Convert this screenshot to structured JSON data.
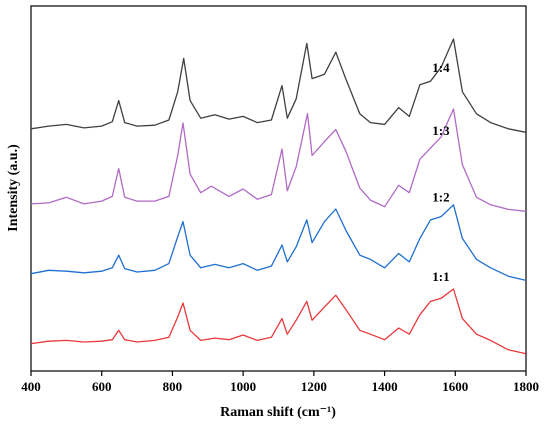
{
  "chart_data": {
    "type": "line",
    "xlabel": "Raman shift (cm⁻¹)",
    "ylabel": "Intensity (a.u.)",
    "xlim": [
      400,
      1800
    ],
    "xticks": [
      400,
      600,
      800,
      1000,
      1200,
      1400,
      1600,
      1800
    ],
    "y_ticks_shown": false,
    "grid": false,
    "legend": "none",
    "series": [
      {
        "label": "1:4",
        "color": "#404040",
        "points": [
          [
            400,
            -2
          ],
          [
            450,
            1
          ],
          [
            500,
            3
          ],
          [
            550,
            -1
          ],
          [
            600,
            1
          ],
          [
            630,
            6
          ],
          [
            648,
            30
          ],
          [
            665,
            5
          ],
          [
            700,
            1
          ],
          [
            750,
            2
          ],
          [
            790,
            8
          ],
          [
            815,
            40
          ],
          [
            832,
            78
          ],
          [
            850,
            30
          ],
          [
            880,
            10
          ],
          [
            920,
            14
          ],
          [
            960,
            9
          ],
          [
            1000,
            12
          ],
          [
            1040,
            5
          ],
          [
            1080,
            8
          ],
          [
            1110,
            47
          ],
          [
            1125,
            10
          ],
          [
            1150,
            32
          ],
          [
            1180,
            95
          ],
          [
            1195,
            55
          ],
          [
            1230,
            60
          ],
          [
            1262,
            85
          ],
          [
            1290,
            55
          ],
          [
            1330,
            15
          ],
          [
            1360,
            5
          ],
          [
            1400,
            3
          ],
          [
            1440,
            22
          ],
          [
            1470,
            12
          ],
          [
            1500,
            48
          ],
          [
            1530,
            52
          ],
          [
            1560,
            68
          ],
          [
            1595,
            100
          ],
          [
            1620,
            40
          ],
          [
            1660,
            15
          ],
          [
            1700,
            5
          ],
          [
            1750,
            -2
          ],
          [
            1800,
            -6
          ]
        ]
      },
      {
        "label": "1:3",
        "color": "#b06ac6",
        "points": [
          [
            400,
            -2
          ],
          [
            450,
            -1
          ],
          [
            500,
            5
          ],
          [
            550,
            -2
          ],
          [
            600,
            1
          ],
          [
            630,
            6
          ],
          [
            648,
            36
          ],
          [
            665,
            5
          ],
          [
            700,
            1
          ],
          [
            750,
            1
          ],
          [
            790,
            6
          ],
          [
            815,
            50
          ],
          [
            830,
            85
          ],
          [
            850,
            30
          ],
          [
            880,
            10
          ],
          [
            910,
            17
          ],
          [
            960,
            6
          ],
          [
            1000,
            14
          ],
          [
            1040,
            3
          ],
          [
            1080,
            8
          ],
          [
            1110,
            57
          ],
          [
            1125,
            12
          ],
          [
            1150,
            38
          ],
          [
            1182,
            95
          ],
          [
            1195,
            50
          ],
          [
            1230,
            65
          ],
          [
            1262,
            78
          ],
          [
            1290,
            55
          ],
          [
            1330,
            15
          ],
          [
            1360,
            2
          ],
          [
            1400,
            -5
          ],
          [
            1440,
            18
          ],
          [
            1470,
            10
          ],
          [
            1500,
            46
          ],
          [
            1530,
            58
          ],
          [
            1560,
            70
          ],
          [
            1595,
            100
          ],
          [
            1620,
            40
          ],
          [
            1660,
            5
          ],
          [
            1700,
            -3
          ],
          [
            1750,
            -8
          ],
          [
            1800,
            -10
          ]
        ]
      },
      {
        "label": "1:2",
        "color": "#1f6fd0",
        "points": [
          [
            400,
            -2
          ],
          [
            450,
            2
          ],
          [
            500,
            1
          ],
          [
            550,
            -1
          ],
          [
            600,
            1
          ],
          [
            630,
            5
          ],
          [
            648,
            20
          ],
          [
            665,
            4
          ],
          [
            700,
            0
          ],
          [
            750,
            2
          ],
          [
            790,
            10
          ],
          [
            815,
            42
          ],
          [
            830,
            60
          ],
          [
            850,
            20
          ],
          [
            880,
            5
          ],
          [
            920,
            9
          ],
          [
            960,
            5
          ],
          [
            1000,
            10
          ],
          [
            1040,
            2
          ],
          [
            1080,
            7
          ],
          [
            1110,
            32
          ],
          [
            1125,
            12
          ],
          [
            1150,
            30
          ],
          [
            1180,
            62
          ],
          [
            1195,
            35
          ],
          [
            1230,
            60
          ],
          [
            1262,
            75
          ],
          [
            1290,
            50
          ],
          [
            1330,
            20
          ],
          [
            1360,
            15
          ],
          [
            1400,
            5
          ],
          [
            1440,
            22
          ],
          [
            1470,
            12
          ],
          [
            1500,
            40
          ],
          [
            1530,
            62
          ],
          [
            1560,
            66
          ],
          [
            1595,
            80
          ],
          [
            1620,
            40
          ],
          [
            1660,
            15
          ],
          [
            1700,
            5
          ],
          [
            1750,
            -5
          ],
          [
            1800,
            -10
          ]
        ]
      },
      {
        "label": "1:1",
        "color": "#e8383a",
        "points": [
          [
            400,
            -2
          ],
          [
            450,
            1
          ],
          [
            500,
            2
          ],
          [
            550,
            0
          ],
          [
            600,
            1
          ],
          [
            630,
            3
          ],
          [
            648,
            15
          ],
          [
            665,
            3
          ],
          [
            700,
            0
          ],
          [
            750,
            2
          ],
          [
            790,
            6
          ],
          [
            815,
            32
          ],
          [
            830,
            50
          ],
          [
            850,
            15
          ],
          [
            880,
            2
          ],
          [
            920,
            5
          ],
          [
            960,
            3
          ],
          [
            1000,
            9
          ],
          [
            1040,
            2
          ],
          [
            1080,
            6
          ],
          [
            1110,
            30
          ],
          [
            1125,
            10
          ],
          [
            1150,
            28
          ],
          [
            1180,
            52
          ],
          [
            1195,
            28
          ],
          [
            1230,
            45
          ],
          [
            1262,
            60
          ],
          [
            1290,
            42
          ],
          [
            1330,
            15
          ],
          [
            1360,
            10
          ],
          [
            1400,
            3
          ],
          [
            1440,
            18
          ],
          [
            1470,
            10
          ],
          [
            1500,
            35
          ],
          [
            1530,
            52
          ],
          [
            1560,
            56
          ],
          [
            1595,
            68
          ],
          [
            1620,
            30
          ],
          [
            1660,
            10
          ],
          [
            1700,
            2
          ],
          [
            1750,
            -10
          ],
          [
            1800,
            -15
          ]
        ]
      }
    ]
  }
}
